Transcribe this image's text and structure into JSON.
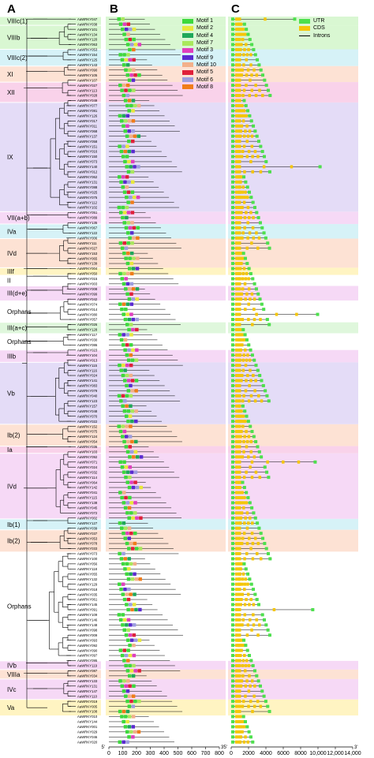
{
  "panels": {
    "a": "A",
    "b": "B",
    "c": "C"
  },
  "groups": [
    {
      "label": "VIIIc(1)",
      "color": "#d9f7d2"
    },
    {
      "label": "VIIIb",
      "color": "#d9f7d2"
    },
    {
      "label": "VIIIc(2)",
      "color": "#d6f2f7"
    },
    {
      "label": "XI",
      "color": "#fde2d4"
    },
    {
      "label": "XII",
      "color": "#f9d2ea"
    },
    {
      "label": "IX",
      "color": "#e4dcf7"
    },
    {
      "label": "VII(a+b)",
      "color": "#f6d9f6"
    },
    {
      "label": "IVa",
      "color": "#d6f2f7"
    },
    {
      "label": "IVd",
      "color": "#fde2d4"
    },
    {
      "label": "IIIf",
      "color": "#fff4c2"
    },
    {
      "label": "II",
      "color": "#ffffff"
    },
    {
      "label": "III(d+e)",
      "color": "#f6d9f6"
    },
    {
      "label": "Orphans",
      "color": "#ffffff"
    },
    {
      "label": "III(a+c)",
      "color": "#dff7dc"
    },
    {
      "label": "Orphans",
      "color": "#ffffff"
    },
    {
      "label": "IIIb",
      "color": "#f6d9f6"
    },
    {
      "label": "Vb",
      "color": "#e4dcf7"
    },
    {
      "label": "Ib(2)",
      "color": "#fde2d4"
    },
    {
      "label": "Ia",
      "color": "#f9d2ea"
    },
    {
      "label": "IVd",
      "color": "#f6d9f6"
    },
    {
      "label": "Ib(1)",
      "color": "#d6f2f7"
    },
    {
      "label": "Ib(2)",
      "color": "#fde2d4"
    },
    {
      "label": "Orphans",
      "color": "#ffffff"
    },
    {
      "label": "IVb",
      "color": "#f6d9f6"
    },
    {
      "label": "VIIIa",
      "color": "#fde2d4"
    },
    {
      "label": "IVc",
      "color": "#f6d9f6"
    },
    {
      "label": "Va",
      "color": "#fff4c2"
    }
  ],
  "genes": [
    "AaWRKY047",
    "AaWRKY038",
    "AaWRKY101",
    "AaWRKY134",
    "AaWRKY120",
    "AaWRKY063",
    "AaWRKY053",
    "AaWRKY154",
    "AaWRKY125",
    "AaWRKY143",
    "AaWRKY090",
    "AaWRKY105",
    "AaWRKY107",
    "AaWRKY027",
    "AaWRKY113",
    "AaWRKY028",
    "AaWRKY049",
    "AaWRKY077",
    "AaWRKY081",
    "AaWRKY126",
    "AaWRKY017",
    "AaWRKY011",
    "AaWRKY068",
    "AaWRKY137",
    "AaWRKY058",
    "AaWRKY151",
    "AaWRKY016",
    "AaWRKY150",
    "AaWRKY073",
    "AaWRKY140",
    "AaWRKY012",
    "AaWRKY062",
    "AaWRKY131",
    "AaWRKY088",
    "AaWRKY025",
    "AaWRKY075",
    "AaWRKY112",
    "AaWRKY102",
    "AaWRKY051",
    "AaWRKY089",
    "AaWRKY135",
    "AaWRKY067",
    "AaWRKY122",
    "AaWRKY006",
    "AaWRKY111",
    "AaWRKY027",
    "AaWRKY153",
    "AaWRKY065",
    "AaWRKY139",
    "AaWRKY004",
    "AaWRKY050",
    "AaWRKY015",
    "AaWRKY003",
    "AaWRKY008",
    "AaWRKY099",
    "AaWRKY042",
    "AaWRKY074",
    "AaWRKY014",
    "AaWRKY080",
    "AaWRKY057",
    "AaWRKY026",
    "AaWRKY128",
    "AaWRKY117",
    "AaWRKY030",
    "AaWRKY086",
    "AaWRKY023",
    "AaWRKY104",
    "AaWRKY013",
    "AaWRKY115",
    "AaWRKY116",
    "AaWRKY024",
    "AaWRKY141",
    "AaWRKY083",
    "AaWRKY079",
    "AaWRKY040",
    "AaWRKY123",
    "AaWRKY157",
    "AaWRKY048",
    "AaWRKY070",
    "AaWRKY022",
    "AaWRKY152",
    "AaWRKY075",
    "AaWRKY124",
    "AaWRKY054",
    "AaWRKY036",
    "AaWRKY103",
    "AaWRKY092",
    "AaWRKY071",
    "AaWRKY024",
    "AaWRKY032",
    "AaWRKY114",
    "AaWRKY064",
    "AaWRKY142",
    "AaWRKY041",
    "AaWRKY115",
    "AaWRKY138",
    "AaWRKY045",
    "AaWRKY072",
    "AaWRKY002",
    "AaWRKY127",
    "AaWRKY039",
    "AaWRKY037",
    "AaWRKY053",
    "AaWRKY078",
    "AaWRKY033",
    "AaWRKY073",
    "AaWRKY100",
    "AaWRKY056",
    "AaWRKY118",
    "AaWRKY055",
    "AaWRKY132",
    "AaWRKY129",
    "AaWRKY018",
    "AaWRKY035",
    "AaWRKY061",
    "AaWRKY145",
    "AaWRKY091",
    "AaWRKY109",
    "AaWRKY146",
    "AaWRKY148",
    "AaWRKY098",
    "AaWRKY009",
    "AaWRKY093",
    "AaWRKY092",
    "AaWRKY090",
    "AaWRKY097",
    "AaWRKY095",
    "AaWRKY119",
    "AaWRKY087",
    "AaWRKY034",
    "AaWRKY133",
    "AaWRKY131",
    "AaWRKY147",
    "AaWRKY110",
    "AaWRKY019",
    "AaWRKY005",
    "AaWRKY108",
    "AaWRKY010",
    "AaWRKY144",
    "AaWRKY001",
    "AaWRKY029",
    "AaWRKY046",
    "AaWRKY020"
  ],
  "legend_b": [
    {
      "label": "Motif 1",
      "color": "#3dd93d"
    },
    {
      "label": "Motif 2",
      "color": "#e8e83a"
    },
    {
      "label": "Motif 4",
      "color": "#1fa85a"
    },
    {
      "label": "Motif 7",
      "color": "#a9e85c"
    },
    {
      "label": "Motif 3",
      "color": "#e03fbd"
    },
    {
      "label": "Motif 9",
      "color": "#5a2bd0"
    },
    {
      "label": "Motif 10",
      "color": "#f2b08a"
    },
    {
      "label": "Motif 5",
      "color": "#e0203a"
    },
    {
      "label": "Motif 6",
      "color": "#9d9de0"
    },
    {
      "label": "Motif 8",
      "color": "#f07d1a"
    }
  ],
  "legend_c": [
    {
      "label": "UTR",
      "color": "#4de04d",
      "kind": "box"
    },
    {
      "label": "CDS",
      "color": "#f5c60a",
      "kind": "box"
    },
    {
      "label": "Introns",
      "color": "#000000",
      "kind": "line"
    }
  ],
  "axis_b": {
    "ticks": [
      "0",
      "100",
      "200",
      "300",
      "400",
      "500",
      "600",
      "700",
      "800"
    ],
    "left_end": "5'",
    "right_end": "3'"
  },
  "axis_c": {
    "ticks": [
      "0",
      "2000",
      "4000",
      "6000",
      "8000",
      "10,000",
      "12,000",
      "14,000"
    ],
    "left_end": "5'",
    "right_end": "3'"
  },
  "colors": {
    "utr": "#4de04d",
    "cds": "#f5c60a",
    "tree": "#000000",
    "bootstrap": "#e6c200"
  }
}
